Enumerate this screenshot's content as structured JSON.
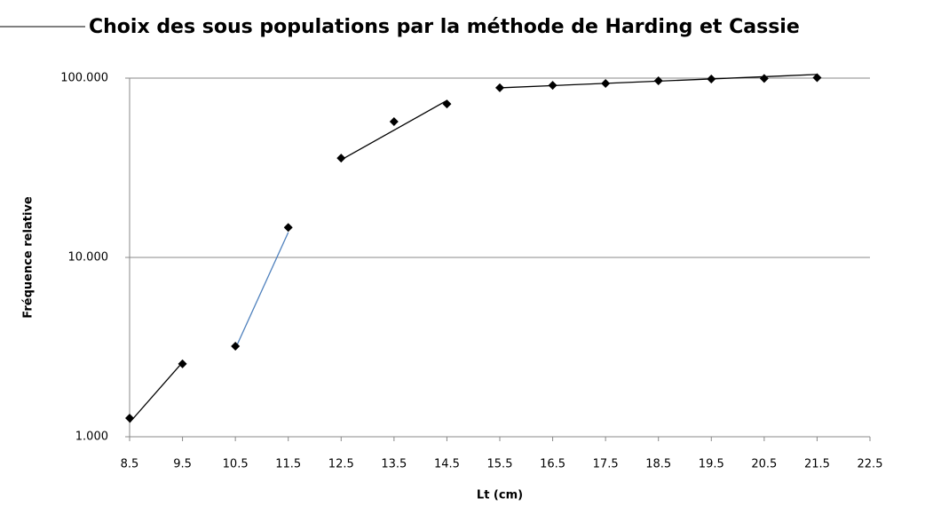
{
  "chart_data": {
    "type": "scatter",
    "title": "Choix des sous populations par la méthode de Harding et Cassie",
    "xlabel": "Lt (cm)",
    "ylabel": "Fréquence relative",
    "x": [
      8.5,
      9.5,
      10.5,
      11.5,
      12.5,
      13.5,
      14.5,
      15.5,
      16.5,
      17.5,
      18.5,
      19.5,
      20.5,
      21.5
    ],
    "values": [
      1.27,
      2.55,
      3.2,
      14.7,
      35.8,
      57.2,
      71.8,
      88.3,
      91.2,
      93.4,
      96.7,
      98.9,
      99.6,
      100.5
    ],
    "color": "#000000",
    "trendlines": [
      {
        "color": "#000000",
        "x": [
          8.5,
          9.5
        ],
        "values": [
          1.2,
          2.6
        ]
      },
      {
        "color": "#4f81bd",
        "x": [
          10.5,
          11.5
        ],
        "values": [
          3.1,
          13.8
        ]
      },
      {
        "color": "#000000",
        "x": [
          12.5,
          14.5
        ],
        "values": [
          35,
          75
        ]
      },
      {
        "color": "#000000",
        "x": [
          15.5,
          21.5
        ],
        "values": [
          88.3,
          104.8
        ]
      }
    ],
    "xlim": [
      8.5,
      22.5
    ],
    "xticks": [
      8.5,
      9.5,
      10.5,
      11.5,
      12.5,
      13.5,
      14.5,
      15.5,
      16.5,
      17.5,
      18.5,
      19.5,
      20.5,
      21.5,
      22.5
    ],
    "ylim": [
      1,
      100
    ],
    "yscale": "log",
    "yticks": [
      {
        "value": 1,
        "label": "1.000"
      },
      {
        "value": 10,
        "label": "10.000"
      },
      {
        "value": 100,
        "label": "100.000"
      }
    ],
    "grid": true
  }
}
